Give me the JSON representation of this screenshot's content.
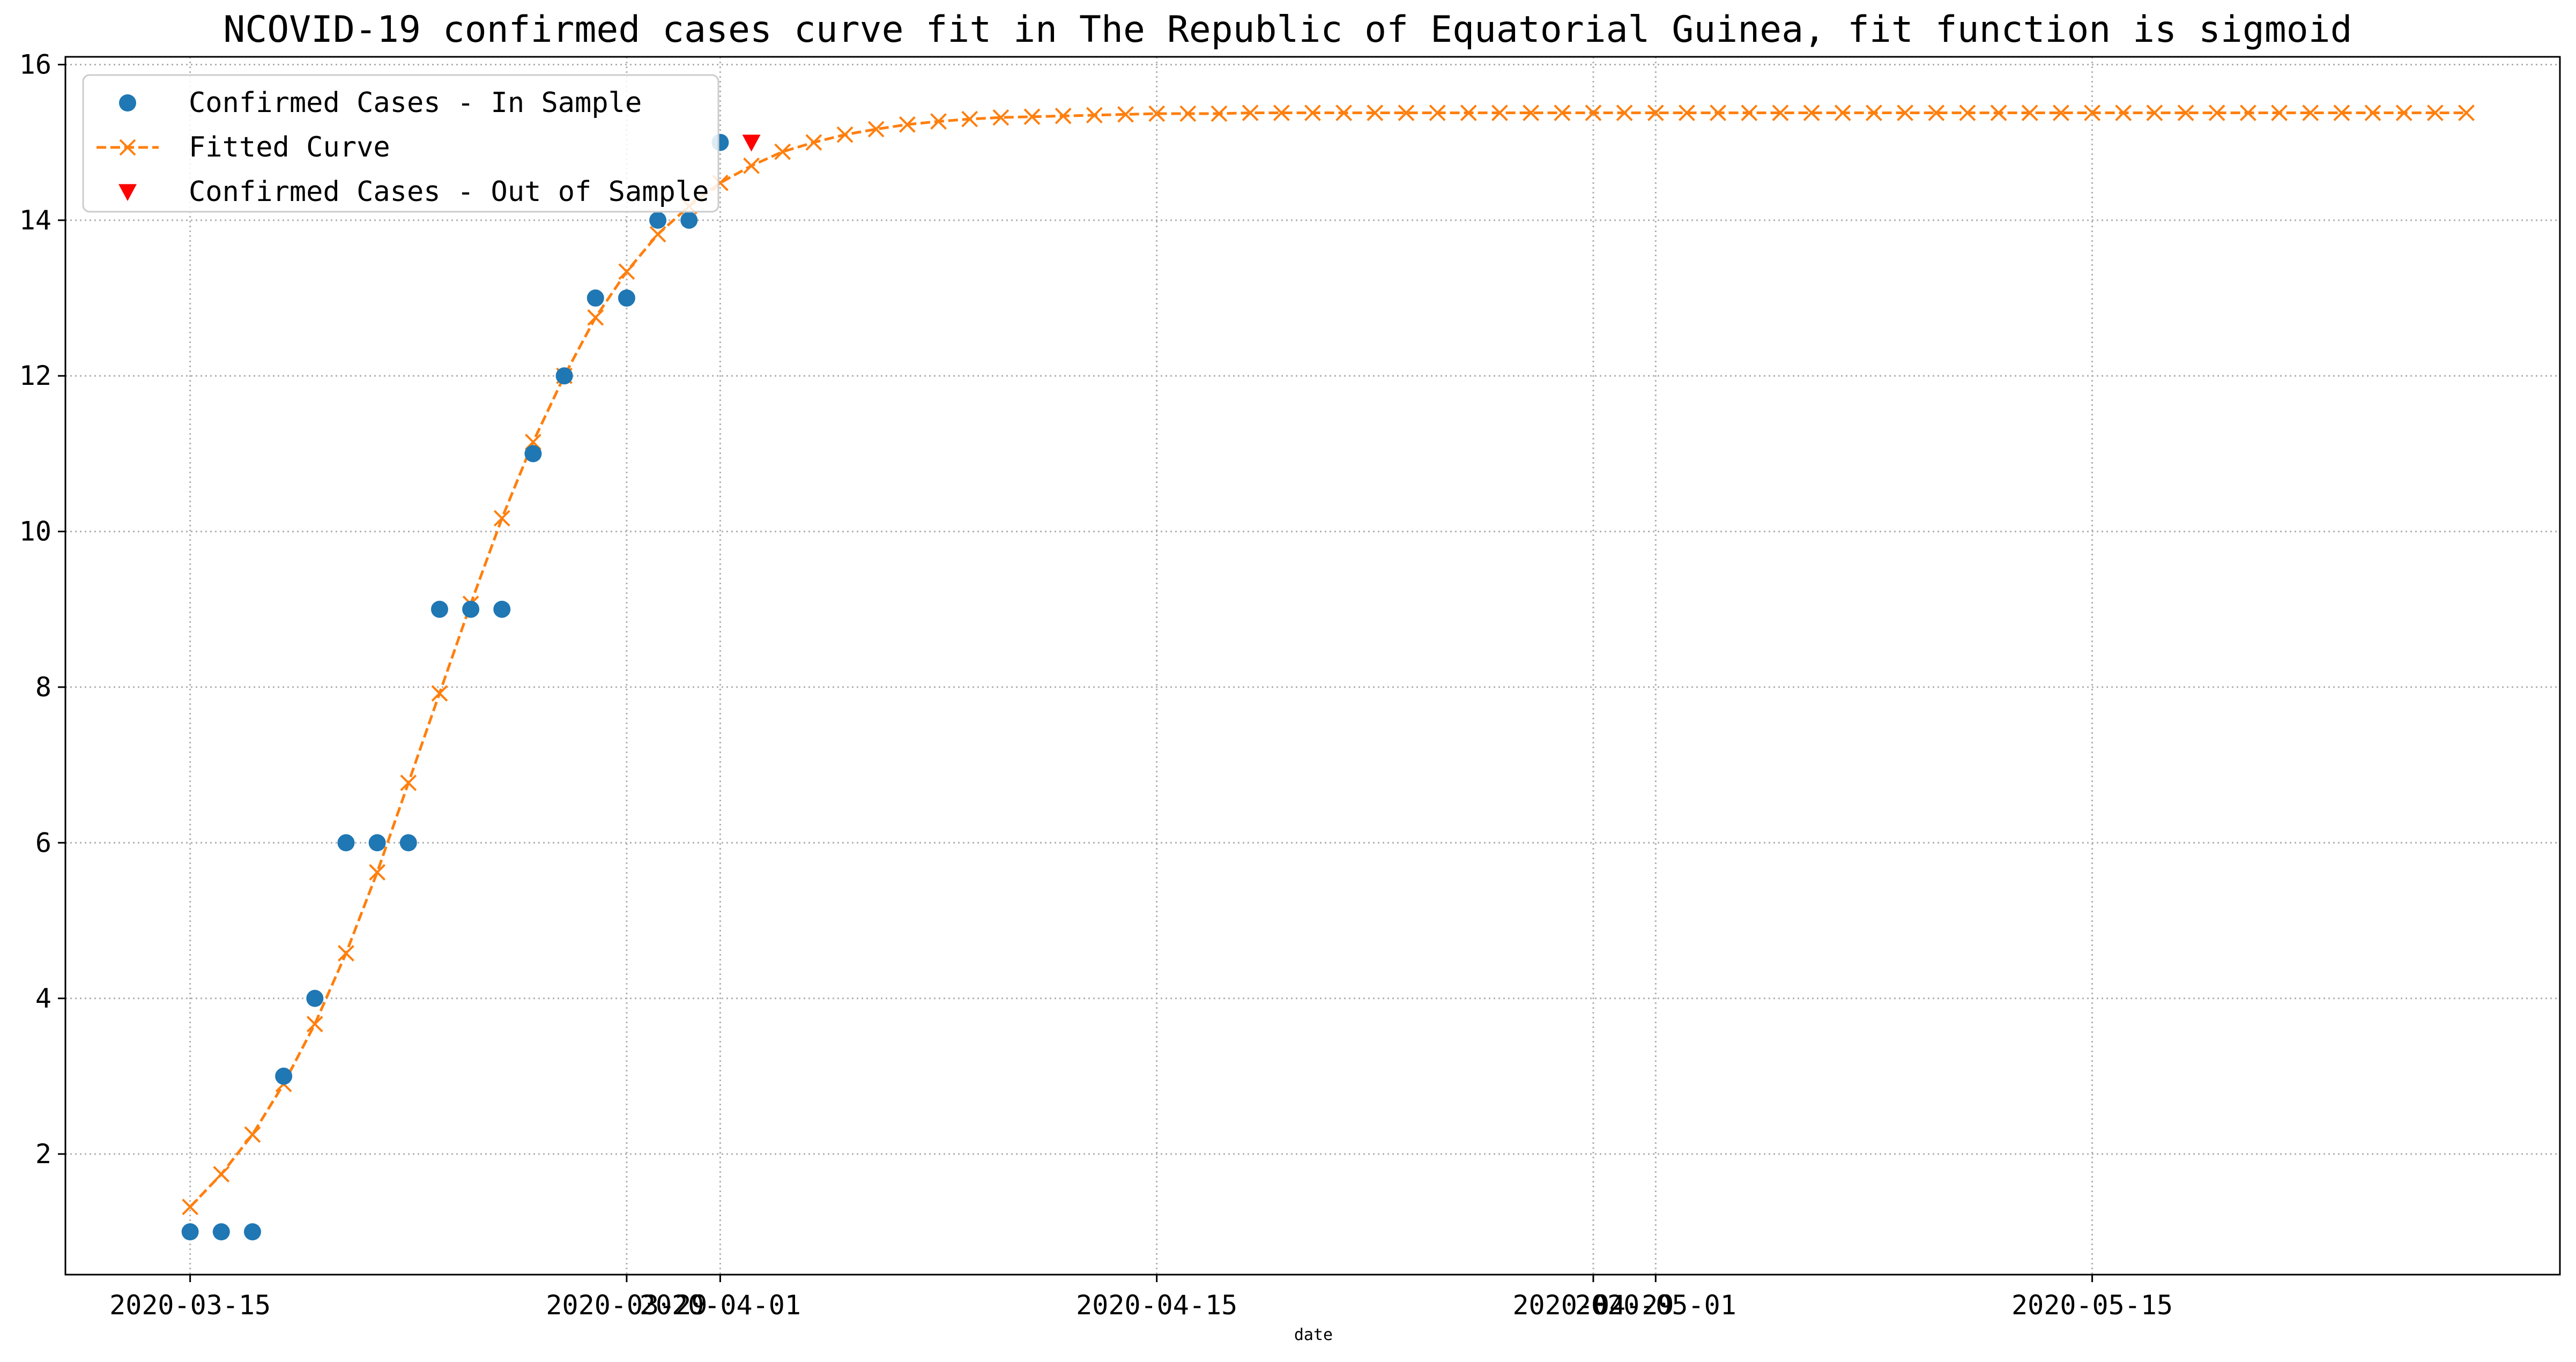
{
  "chart_data": {
    "type": "line",
    "title": "NCOVID-19 confirmed cases curve fit in The Republic of Equatorial Guinea, fit function is sigmoid",
    "xlabel": "date",
    "ylabel": "",
    "x_type": "date",
    "xlim": [
      "2020-03-11",
      "2020-05-30"
    ],
    "ylim": [
      0.45,
      16.1
    ],
    "grid": true,
    "grid_style": "dotted",
    "legend_position": "top-left",
    "x_ticks": [
      "2020-03-15",
      "2020-03-29",
      "2020-04-01",
      "2020-04-15",
      "2020-04-29",
      "2020-05-01",
      "2020-05-15"
    ],
    "y_ticks": [
      2,
      4,
      6,
      8,
      10,
      12,
      14,
      16
    ],
    "series": [
      {
        "name": "Confirmed Cases - In Sample",
        "style": "marker-circle",
        "color": "#1f77b4",
        "points": [
          {
            "x": "2020-03-15",
            "y": 1
          },
          {
            "x": "2020-03-16",
            "y": 1
          },
          {
            "x": "2020-03-17",
            "y": 1
          },
          {
            "x": "2020-03-18",
            "y": 3
          },
          {
            "x": "2020-03-19",
            "y": 4
          },
          {
            "x": "2020-03-20",
            "y": 6
          },
          {
            "x": "2020-03-21",
            "y": 6
          },
          {
            "x": "2020-03-22",
            "y": 6
          },
          {
            "x": "2020-03-23",
            "y": 9
          },
          {
            "x": "2020-03-24",
            "y": 9
          },
          {
            "x": "2020-03-25",
            "y": 9
          },
          {
            "x": "2020-03-26",
            "y": 11
          },
          {
            "x": "2020-03-27",
            "y": 12
          },
          {
            "x": "2020-03-28",
            "y": 13
          },
          {
            "x": "2020-03-29",
            "y": 13
          },
          {
            "x": "2020-03-30",
            "y": 14
          },
          {
            "x": "2020-03-31",
            "y": 14
          },
          {
            "x": "2020-04-01",
            "y": 15
          }
        ]
      },
      {
        "name": "Fitted Curve",
        "style": "dashed-line-x-marker",
        "color": "#ff7f0e",
        "x_start": "2020-03-15",
        "x_step_days": 1,
        "values": [
          1.32,
          1.74,
          2.25,
          2.9,
          3.67,
          4.58,
          5.62,
          6.77,
          7.92,
          9.07,
          10.17,
          11.15,
          12.0,
          12.75,
          13.34,
          13.82,
          14.18,
          14.48,
          14.7,
          14.88,
          15.0,
          15.1,
          15.17,
          15.23,
          15.27,
          15.3,
          15.32,
          15.33,
          15.34,
          15.35,
          15.36,
          15.37,
          15.37,
          15.37,
          15.38,
          15.38,
          15.38,
          15.38,
          15.38,
          15.38,
          15.38,
          15.38,
          15.38,
          15.38,
          15.38,
          15.38,
          15.38,
          15.38,
          15.38,
          15.38,
          15.38,
          15.38,
          15.38,
          15.38,
          15.38,
          15.38,
          15.38,
          15.38,
          15.38,
          15.38,
          15.38,
          15.38,
          15.38,
          15.38,
          15.38,
          15.38,
          15.38,
          15.38,
          15.38,
          15.38,
          15.38,
          15.38,
          15.38,
          15.38
        ]
      },
      {
        "name": "Confirmed Cases - Out of Sample",
        "style": "marker-triangle-down",
        "color": "#ff0000",
        "points": [
          {
            "x": "2020-04-02",
            "y": 15
          }
        ]
      }
    ]
  }
}
